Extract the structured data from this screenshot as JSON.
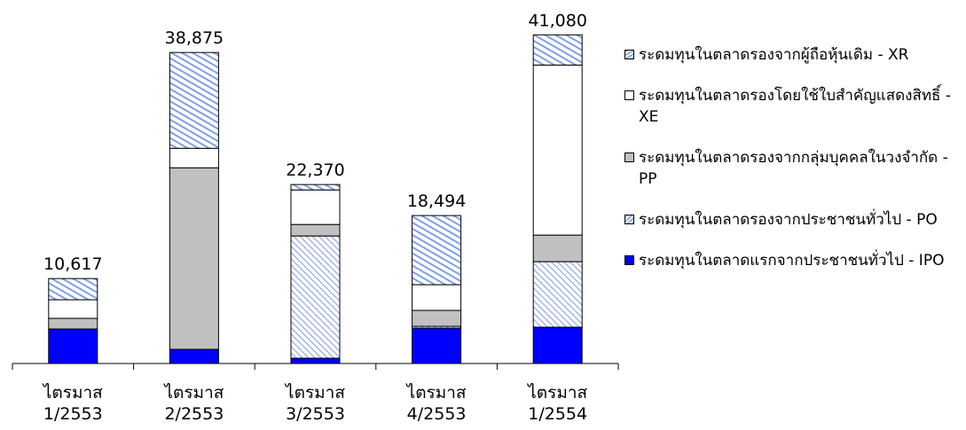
{
  "chart_data": {
    "type": "stacked_bar",
    "categories": [
      "ไตรมาส 1/2553",
      "ไตรมาส 2/2553",
      "ไตรมาส 3/2553",
      "ไตรมาส 4/2553",
      "ไตรมาส 1/2554"
    ],
    "series": [
      {
        "name": "ระดมทุนในตลาดแรกจากประชาชนทั่วไป - IPO",
        "color": "#0000ff",
        "values": [
          4318,
          1771,
          664,
          4428,
          4539
        ]
      },
      {
        "name": "ระดมทุนในตลาดรองจากประชาชนทั่วไป - PO",
        "color": "#99aaee",
        "pattern": "hatch",
        "values": [
          0,
          0,
          15277,
          221,
          8192
        ]
      },
      {
        "name": "ระดมทุนในตลาดรองจากกลุ่มบุคคลในวงจำกัด - PP",
        "color": "#c0c0c0",
        "values": [
          1328,
          22694,
          1439,
          1993,
          3321
        ]
      },
      {
        "name": "ระดมทุนในตลาดรองโดยใช้ใบสำคัญแสดงสิทธิ์ - XE",
        "color": "#ffffff",
        "values": [
          2325,
          2435,
          4317,
          3210,
          21254
        ]
      },
      {
        "name": "ระดมทุนในตลาดรองจากผู้ถือหุ้นเดิม - XR",
        "color": "#88aaee",
        "pattern": "dash",
        "values": [
          2646,
          11975,
          673,
          8642,
          3774
        ]
      }
    ],
    "totals": [
      10617,
      38875,
      22370,
      18494,
      41080
    ],
    "total_labels": [
      "10,617",
      "38,875",
      "22,370",
      "18,494",
      "41,080"
    ],
    "ylim": [
      0,
      42000
    ],
    "legend": "right"
  }
}
